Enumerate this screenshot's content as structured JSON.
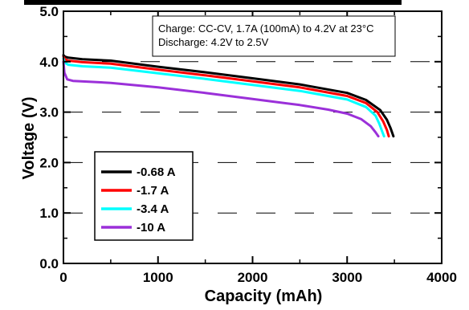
{
  "chart_data": {
    "type": "line",
    "title": "",
    "xlabel": "Capacity (mAh)",
    "ylabel": "Voltage (V)",
    "xlim": [
      0,
      4000
    ],
    "ylim": [
      0,
      5
    ],
    "x_ticks": [
      0,
      1000,
      2000,
      3000,
      4000
    ],
    "y_ticks": [
      0.0,
      1.0,
      2.0,
      3.0,
      4.0,
      5.0
    ],
    "x_tick_labels": [
      "0",
      "1000",
      "2000",
      "3000",
      "4000"
    ],
    "y_tick_labels": [
      "0.0",
      "1.0",
      "2.0",
      "3.0",
      "4.0",
      "5.0"
    ],
    "grid": "horizontal dashed",
    "legend_position": "lower-left",
    "annotation": [
      "Charge: CC-CV, 1.7A (100mA) to 4.2V at 23°C",
      "Discharge: 4.2V to 2.5V"
    ],
    "series": [
      {
        "name": "-0.68 A",
        "color": "#000000",
        "points": [
          [
            0,
            4.13
          ],
          [
            15,
            4.1
          ],
          [
            50,
            4.08
          ],
          [
            200,
            4.05
          ],
          [
            500,
            4.02
          ],
          [
            1000,
            3.9
          ],
          [
            1500,
            3.79
          ],
          [
            2000,
            3.67
          ],
          [
            2500,
            3.55
          ],
          [
            3000,
            3.38
          ],
          [
            3200,
            3.24
          ],
          [
            3350,
            3.04
          ],
          [
            3420,
            2.85
          ],
          [
            3460,
            2.68
          ],
          [
            3490,
            2.52
          ]
        ]
      },
      {
        "name": "-1.7 A",
        "color": "#ff0000",
        "points": [
          [
            0,
            4.1
          ],
          [
            15,
            4.05
          ],
          [
            50,
            4.02
          ],
          [
            200,
            3.99
          ],
          [
            500,
            3.96
          ],
          [
            1000,
            3.84
          ],
          [
            1500,
            3.73
          ],
          [
            2000,
            3.61
          ],
          [
            2500,
            3.49
          ],
          [
            3000,
            3.32
          ],
          [
            3200,
            3.18
          ],
          [
            3320,
            3.0
          ],
          [
            3380,
            2.82
          ],
          [
            3420,
            2.65
          ],
          [
            3440,
            2.52
          ]
        ]
      },
      {
        "name": "-3.4 A",
        "color": "#00ffff",
        "points": [
          [
            0,
            4.06
          ],
          [
            15,
            3.98
          ],
          [
            50,
            3.94
          ],
          [
            200,
            3.91
          ],
          [
            500,
            3.88
          ],
          [
            1000,
            3.77
          ],
          [
            1500,
            3.66
          ],
          [
            2000,
            3.54
          ],
          [
            2500,
            3.42
          ],
          [
            3000,
            3.25
          ],
          [
            3200,
            3.1
          ],
          [
            3300,
            2.93
          ],
          [
            3340,
            2.77
          ],
          [
            3370,
            2.62
          ],
          [
            3390,
            2.52
          ]
        ]
      },
      {
        "name": "-10 A",
        "color": "#9b30d9",
        "points": [
          [
            0,
            4.0
          ],
          [
            10,
            3.78
          ],
          [
            40,
            3.65
          ],
          [
            100,
            3.62
          ],
          [
            500,
            3.58
          ],
          [
            1000,
            3.49
          ],
          [
            1500,
            3.38
          ],
          [
            2000,
            3.26
          ],
          [
            2500,
            3.14
          ],
          [
            2800,
            3.05
          ],
          [
            3000,
            2.97
          ],
          [
            3150,
            2.86
          ],
          [
            3250,
            2.72
          ],
          [
            3300,
            2.6
          ],
          [
            3330,
            2.52
          ]
        ]
      }
    ]
  }
}
